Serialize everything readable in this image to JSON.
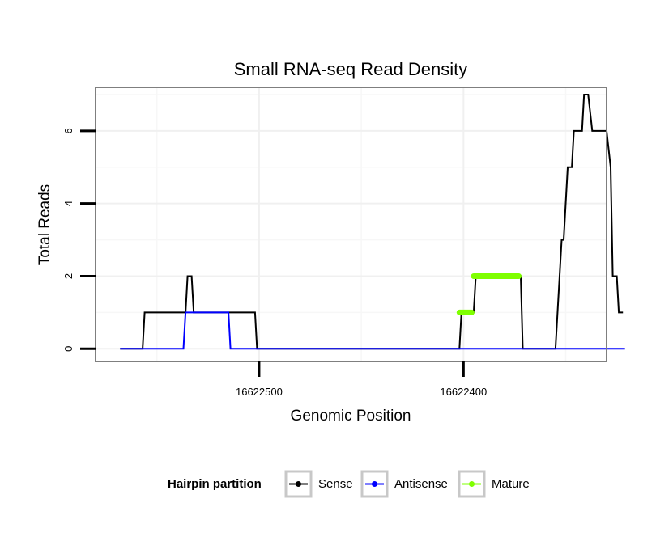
{
  "chart_data": {
    "type": "line",
    "title": "Small RNA-seq Read Density",
    "xlabel": "Genomic Position",
    "ylabel": "Total Reads",
    "xlim": [
      16622580,
      16622330
    ],
    "ylim": [
      -0.35,
      7.2
    ],
    "x_axis_reversed": true,
    "grid": true,
    "legend_position": "bottom",
    "x_ticks": [
      {
        "value": 16622500,
        "label": "16622500"
      },
      {
        "value": 16622400,
        "label": "16622400"
      }
    ],
    "y_ticks": [
      {
        "value": 0,
        "label": "0"
      },
      {
        "value": 2,
        "label": "2"
      },
      {
        "value": 4,
        "label": "4"
      },
      {
        "value": 6,
        "label": "6"
      }
    ],
    "legend": {
      "title": "Hairpin partition",
      "entries": [
        {
          "name": "Sense",
          "color": "#000000"
        },
        {
          "name": "Antisense",
          "color": "#0000ff"
        },
        {
          "name": "Mature",
          "color": "#7fff00"
        }
      ]
    },
    "series": [
      {
        "name": "Sense",
        "color": "#000000",
        "x": [
          16622568,
          16622557,
          16622556,
          16622536,
          16622535,
          16622533,
          16622532,
          16622524,
          16622514,
          16622513,
          16622502,
          16622501,
          16622402,
          16622401,
          16622395,
          16622394,
          16622372,
          16622371,
          16622355,
          16622352,
          16622351,
          16622349,
          16622347,
          16622346,
          16622342,
          16622341,
          16622339,
          16622337,
          16622330,
          16622328,
          16622327,
          16622325,
          16622324,
          16622323,
          16622322
        ],
        "values": [
          0,
          0,
          1,
          1,
          2,
          2,
          1,
          1,
          1,
          1,
          1,
          0,
          0,
          1,
          1,
          2,
          2,
          0,
          0,
          3,
          3,
          5,
          5,
          6,
          6,
          7,
          7,
          6,
          6,
          5,
          2,
          2,
          1,
          1,
          1
        ]
      },
      {
        "name": "Antisense",
        "color": "#0000ff",
        "x": [
          16622568,
          16622537,
          16622536,
          16622515,
          16622514,
          16622321
        ],
        "values": [
          0,
          0,
          1,
          1,
          0,
          0
        ]
      },
      {
        "name": "Mature",
        "color": "#7fff00",
        "segments": [
          {
            "x": [
              16622402,
              16622396
            ],
            "values": [
              1,
              1
            ]
          },
          {
            "x": [
              16622395,
              16622373
            ],
            "values": [
              2,
              2
            ]
          }
        ]
      }
    ]
  }
}
